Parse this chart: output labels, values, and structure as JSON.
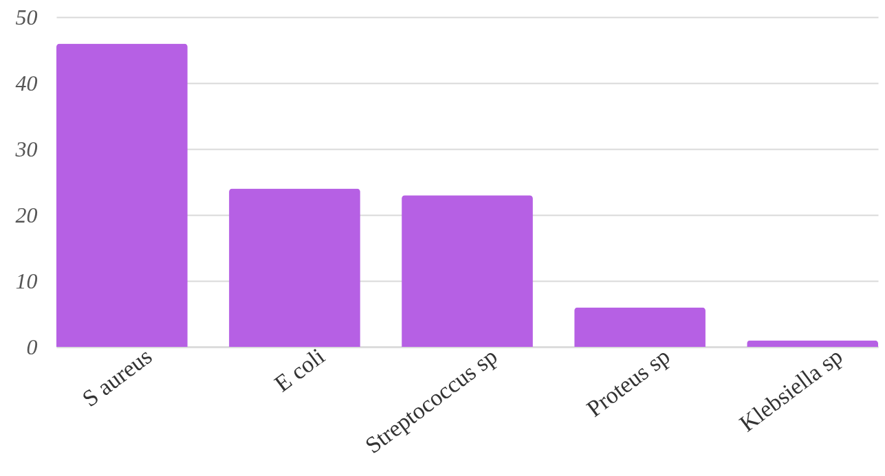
{
  "chart_data": {
    "type": "bar",
    "categories": [
      "S aureus",
      "E coli",
      "Streptococcus sp",
      "Proteus sp",
      "Klebsiella sp"
    ],
    "values": [
      46,
      24,
      23,
      6,
      1
    ],
    "color": "#b660e4",
    "ylim": [
      0,
      50
    ],
    "yticks": [
      0,
      10,
      20,
      30,
      40,
      50
    ],
    "grid": "y"
  }
}
